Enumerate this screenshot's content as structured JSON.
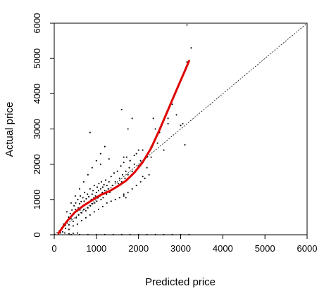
{
  "chart_data": {
    "type": "scatter",
    "title": "",
    "xlabel": "Predicted price",
    "ylabel": "Actual price",
    "xlim": [
      0,
      6000
    ],
    "ylim": [
      0,
      6000
    ],
    "x_ticks": [
      "0",
      "1000",
      "2000",
      "3000",
      "4000",
      "5000",
      "6000"
    ],
    "y_ticks": [
      "0",
      "1000",
      "2000",
      "3000",
      "4000",
      "5000",
      "6000"
    ],
    "grid": false,
    "legend": "none",
    "colors": {
      "points": "#000000",
      "smooth_line": "#e00000",
      "reference_line": "#000000"
    },
    "reference_line": {
      "description": "y = x dotted diagonal",
      "from": [
        0,
        0
      ],
      "to": [
        6000,
        6000
      ]
    },
    "points": [
      [
        150,
        120
      ],
      [
        180,
        200
      ],
      [
        200,
        80
      ],
      [
        220,
        300
      ],
      [
        250,
        260
      ],
      [
        270,
        180
      ],
      [
        300,
        350
      ],
      [
        320,
        420
      ],
      [
        340,
        500
      ],
      [
        350,
        280
      ],
      [
        380,
        600
      ],
      [
        400,
        450
      ],
      [
        420,
        700
      ],
      [
        430,
        550
      ],
      [
        450,
        380
      ],
      [
        470,
        820
      ],
      [
        480,
        640
      ],
      [
        500,
        720
      ],
      [
        510,
        900
      ],
      [
        520,
        480
      ],
      [
        540,
        660
      ],
      [
        560,
        1000
      ],
      [
        570,
        760
      ],
      [
        580,
        560
      ],
      [
        600,
        880
      ],
      [
        610,
        700
      ],
      [
        620,
        1100
      ],
      [
        640,
        940
      ],
      [
        650,
        620
      ],
      [
        660,
        800
      ],
      [
        680,
        1050
      ],
      [
        700,
        720
      ],
      [
        710,
        950
      ],
      [
        720,
        1200
      ],
      [
        740,
        860
      ],
      [
        750,
        680
      ],
      [
        760,
        1020
      ],
      [
        780,
        900
      ],
      [
        790,
        1150
      ],
      [
        800,
        760
      ],
      [
        820,
        1080
      ],
      [
        840,
        940
      ],
      [
        850,
        1300
      ],
      [
        860,
        820
      ],
      [
        880,
        1000
      ],
      [
        900,
        1150
      ],
      [
        910,
        880
      ],
      [
        920,
        1250
      ],
      [
        940,
        1050
      ],
      [
        950,
        1400
      ],
      [
        960,
        900
      ],
      [
        980,
        1100
      ],
      [
        1000,
        1200
      ],
      [
        1010,
        950
      ],
      [
        1020,
        1350
      ],
      [
        1040,
        1050
      ],
      [
        1050,
        1250
      ],
      [
        1060,
        1450
      ],
      [
        1080,
        1100
      ],
      [
        1100,
        1300
      ],
      [
        1110,
        1000
      ],
      [
        1120,
        1500
      ],
      [
        1140,
        1200
      ],
      [
        1150,
        1350
      ],
      [
        1160,
        1050
      ],
      [
        1180,
        1420
      ],
      [
        1200,
        1250
      ],
      [
        1220,
        1550
      ],
      [
        1240,
        1150
      ],
      [
        1250,
        1400
      ],
      [
        1280,
        1300
      ],
      [
        1300,
        1500
      ],
      [
        1320,
        1200
      ],
      [
        1350,
        1650
      ],
      [
        1380,
        1400
      ],
      [
        1400,
        1300
      ],
      [
        1420,
        1750
      ],
      [
        1450,
        1500
      ],
      [
        1480,
        1350
      ],
      [
        1500,
        1800
      ],
      [
        1520,
        1450
      ],
      [
        1550,
        1600
      ],
      [
        1580,
        1950
      ],
      [
        1600,
        1500
      ],
      [
        1620,
        1700
      ],
      [
        1650,
        2050
      ],
      [
        1680,
        1600
      ],
      [
        1700,
        1800
      ],
      [
        1720,
        2200
      ],
      [
        1750,
        1700
      ],
      [
        1780,
        1900
      ],
      [
        1800,
        2100
      ],
      [
        1850,
        1800
      ],
      [
        1900,
        2000
      ],
      [
        1950,
        2300
      ],
      [
        2000,
        1950
      ],
      [
        2050,
        2100
      ],
      [
        2100,
        2400
      ],
      [
        2200,
        2200
      ],
      [
        2300,
        2500
      ],
      [
        300,
        650
      ],
      [
        400,
        900
      ],
      [
        500,
        1100
      ],
      [
        600,
        1300
      ],
      [
        700,
        1500
      ],
      [
        800,
        1700
      ],
      [
        900,
        1900
      ],
      [
        1000,
        2100
      ],
      [
        1100,
        2300
      ],
      [
        1200,
        2500
      ],
      [
        350,
        150
      ],
      [
        450,
        250
      ],
      [
        550,
        300
      ],
      [
        650,
        400
      ],
      [
        750,
        480
      ],
      [
        850,
        560
      ],
      [
        950,
        650
      ],
      [
        1050,
        720
      ],
      [
        1150,
        800
      ],
      [
        1250,
        900
      ],
      [
        1350,
        950
      ],
      [
        1450,
        1000
      ],
      [
        1550,
        1050
      ],
      [
        1650,
        1100
      ],
      [
        1750,
        1200
      ],
      [
        1850,
        1300
      ],
      [
        1950,
        1400
      ],
      [
        2050,
        1500
      ],
      [
        2150,
        1600
      ],
      [
        2250,
        1700
      ],
      [
        850,
        2900
      ],
      [
        1100,
        2000
      ],
      [
        1300,
        2150
      ],
      [
        1600,
        3550
      ],
      [
        1650,
        2200
      ],
      [
        1650,
        1150
      ],
      [
        1700,
        1050
      ],
      [
        1750,
        3000
      ],
      [
        1800,
        2100
      ],
      [
        1850,
        3300
      ],
      [
        1900,
        2250
      ],
      [
        2000,
        2400
      ],
      [
        2100,
        1650
      ],
      [
        2200,
        1900
      ],
      [
        2300,
        2200
      ],
      [
        2350,
        3300
      ],
      [
        2400,
        3000
      ],
      [
        2450,
        2600
      ],
      [
        2500,
        2900
      ],
      [
        2600,
        2400
      ],
      [
        2700,
        3150
      ],
      [
        3000,
        3100
      ],
      [
        3050,
        3150
      ],
      [
        3100,
        2550
      ],
      [
        3150,
        5950
      ],
      [
        3250,
        5300
      ],
      [
        3150,
        4900
      ],
      [
        2900,
        3400
      ],
      [
        2800,
        3700
      ],
      [
        2700,
        3300
      ],
      [
        400,
        5
      ],
      [
        600,
        5
      ],
      [
        800,
        5
      ],
      [
        1000,
        5
      ],
      [
        1200,
        5
      ],
      [
        1400,
        5
      ],
      [
        1600,
        5
      ],
      [
        1800,
        5
      ],
      [
        2000,
        5
      ],
      [
        2200,
        5
      ],
      [
        2400,
        5
      ],
      [
        2600,
        5
      ],
      [
        2800,
        5
      ],
      [
        3000,
        5
      ],
      [
        3200,
        5
      ],
      [
        150,
        50
      ],
      [
        250,
        50
      ],
      [
        350,
        30
      ],
      [
        450,
        40
      ],
      [
        550,
        50
      ]
    ],
    "smooth_line": {
      "x": [
        100,
        300,
        500,
        700,
        900,
        1100,
        1300,
        1500,
        1700,
        1900,
        2100,
        2300,
        2500,
        2700,
        2900,
        3100,
        3200
      ],
      "y": [
        40,
        380,
        650,
        830,
        980,
        1130,
        1230,
        1370,
        1530,
        1760,
        2060,
        2460,
        2980,
        3540,
        4100,
        4650,
        4930
      ]
    }
  }
}
